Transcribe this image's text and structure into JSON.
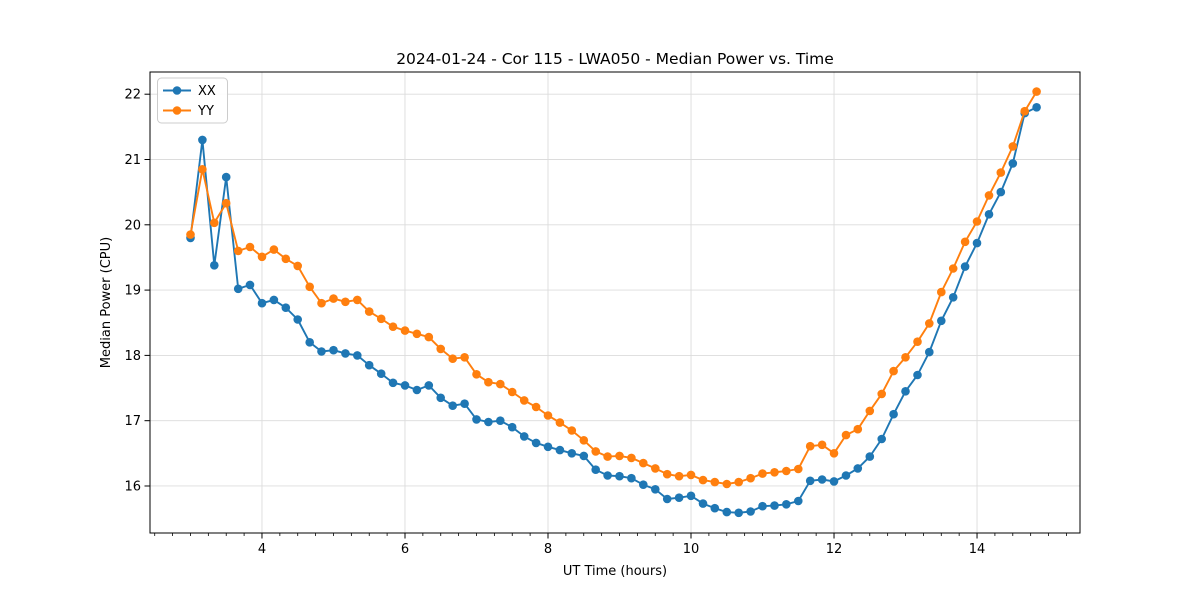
{
  "chart_data": {
    "type": "line",
    "title": "2024-01-24 - Cor 115 - LWA050 - Median Power vs. Time",
    "xlabel": "UT Time (hours)",
    "ylabel": "Median Power (CPU)",
    "xlim": [
      2.434,
      15.44
    ],
    "ylim": [
      15.28,
      22.34
    ],
    "x_ticks": [
      4,
      6,
      8,
      10,
      12,
      14
    ],
    "x_minor_step": 0.25,
    "y_ticks": [
      16,
      17,
      18,
      19,
      20,
      21,
      22
    ],
    "grid": true,
    "grid_color": "#dcdcdc",
    "legend_position": "upper-left",
    "marker": "circle",
    "x": [
      3.0,
      3.167,
      3.333,
      3.5,
      3.667,
      3.833,
      4.0,
      4.167,
      4.333,
      4.5,
      4.667,
      4.833,
      5.0,
      5.167,
      5.333,
      5.5,
      5.667,
      5.833,
      6.0,
      6.167,
      6.333,
      6.5,
      6.667,
      6.833,
      7.0,
      7.167,
      7.333,
      7.5,
      7.667,
      7.833,
      8.0,
      8.167,
      8.333,
      8.5,
      8.667,
      8.833,
      9.0,
      9.167,
      9.333,
      9.5,
      9.667,
      9.833,
      10.0,
      10.167,
      10.333,
      10.5,
      10.667,
      10.833,
      11.0,
      11.167,
      11.333,
      11.5,
      11.667,
      11.833,
      12.0,
      12.167,
      12.333,
      12.5,
      12.667,
      12.833,
      13.0,
      13.167,
      13.333,
      13.5,
      13.667,
      13.833,
      14.0,
      14.167,
      14.333,
      14.5,
      14.667,
      14.833
    ],
    "series": [
      {
        "name": "XX",
        "color": "#1f77b4",
        "values": [
          19.8,
          21.3,
          19.38,
          20.73,
          19.02,
          19.08,
          18.8,
          18.85,
          18.73,
          18.55,
          18.2,
          18.06,
          18.08,
          18.03,
          18.0,
          17.85,
          17.72,
          17.58,
          17.54,
          17.47,
          17.54,
          17.35,
          17.23,
          17.26,
          17.02,
          16.98,
          17.0,
          16.9,
          16.76,
          16.66,
          16.6,
          16.55,
          16.5,
          16.46,
          16.25,
          16.16,
          16.15,
          16.12,
          16.02,
          15.95,
          15.8,
          15.82,
          15.85,
          15.73,
          15.66,
          15.6,
          15.59,
          15.61,
          15.69,
          15.7,
          15.72,
          15.77,
          16.08,
          16.1,
          16.07,
          16.16,
          16.27,
          16.45,
          16.72,
          17.1,
          17.45,
          17.7,
          18.05,
          18.53,
          18.89,
          19.36,
          19.72,
          20.16,
          20.5,
          20.94,
          21.71,
          21.8
        ]
      },
      {
        "name": "YY",
        "color": "#ff7f0e",
        "values": [
          19.85,
          20.85,
          20.03,
          20.33,
          19.6,
          19.66,
          19.51,
          19.62,
          19.48,
          19.37,
          19.05,
          18.8,
          18.87,
          18.82,
          18.85,
          18.67,
          18.56,
          18.44,
          18.38,
          18.33,
          18.28,
          18.1,
          17.95,
          17.97,
          17.71,
          17.59,
          17.56,
          17.44,
          17.31,
          17.21,
          17.08,
          16.97,
          16.85,
          16.7,
          16.53,
          16.45,
          16.46,
          16.43,
          16.35,
          16.27,
          16.18,
          16.15,
          16.17,
          16.09,
          16.06,
          16.03,
          16.06,
          16.12,
          16.19,
          16.21,
          16.23,
          16.26,
          16.61,
          16.63,
          16.5,
          16.78,
          16.87,
          17.15,
          17.41,
          17.76,
          17.97,
          18.21,
          18.49,
          18.97,
          19.33,
          19.74,
          20.05,
          20.45,
          20.8,
          21.2,
          21.74,
          22.04
        ]
      }
    ]
  }
}
